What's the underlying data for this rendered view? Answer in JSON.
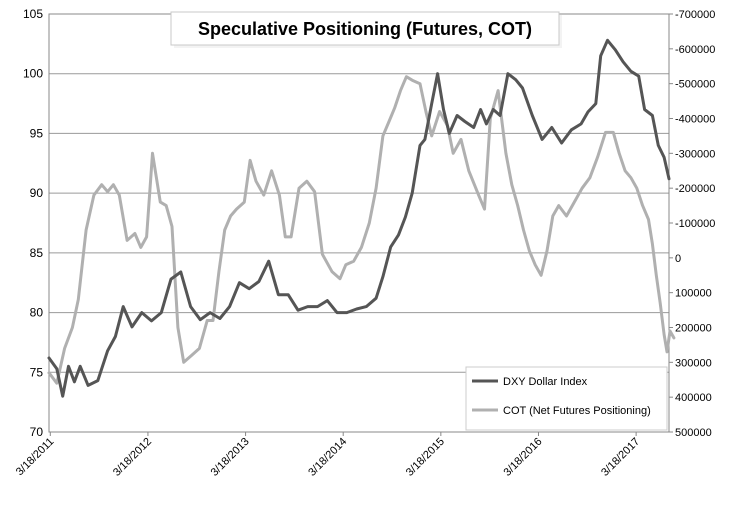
{
  "chart_data": {
    "type": "line",
    "title": "Speculative Positioning (Futures, COT)",
    "x_tick_labels": [
      "3/18/2011",
      "3/18/2012",
      "3/18/2013",
      "3/18/2014",
      "3/18/2015",
      "3/18/2016",
      "3/18/2017"
    ],
    "x_range": [
      2011.2,
      2017.55
    ],
    "y_left": {
      "min": 70,
      "max": 105,
      "ticks": [
        "70",
        "75",
        "80",
        "85",
        "90",
        "95",
        "100",
        "105"
      ]
    },
    "y_right": {
      "min": 500000,
      "max": -700000,
      "inverted": true,
      "ticks": [
        "500000",
        "400000",
        "300000",
        "200000",
        "100000",
        "0",
        "-100000",
        "-200000",
        "-300000",
        "-400000",
        "-500000",
        "-600000",
        "-700000"
      ]
    },
    "grid": "horizontal",
    "legend_position": "bottom-right",
    "series": [
      {
        "name": "DXY Dollar Index",
        "axis": "left",
        "color": "#555555",
        "points": [
          [
            2011.2,
            76.2
          ],
          [
            2011.28,
            75.3
          ],
          [
            2011.34,
            73.0
          ],
          [
            2011.4,
            75.5
          ],
          [
            2011.46,
            74.2
          ],
          [
            2011.52,
            75.5
          ],
          [
            2011.6,
            73.9
          ],
          [
            2011.7,
            74.3
          ],
          [
            2011.8,
            76.8
          ],
          [
            2011.88,
            78.0
          ],
          [
            2011.96,
            80.5
          ],
          [
            2012.05,
            78.8
          ],
          [
            2012.15,
            80.0
          ],
          [
            2012.25,
            79.3
          ],
          [
            2012.35,
            80.0
          ],
          [
            2012.45,
            82.8
          ],
          [
            2012.55,
            83.4
          ],
          [
            2012.65,
            80.5
          ],
          [
            2012.75,
            79.4
          ],
          [
            2012.85,
            80.0
          ],
          [
            2012.95,
            79.5
          ],
          [
            2013.05,
            80.5
          ],
          [
            2013.15,
            82.5
          ],
          [
            2013.25,
            82.0
          ],
          [
            2013.35,
            82.6
          ],
          [
            2013.45,
            84.3
          ],
          [
            2013.55,
            81.5
          ],
          [
            2013.65,
            81.5
          ],
          [
            2013.75,
            80.2
          ],
          [
            2013.85,
            80.5
          ],
          [
            2013.95,
            80.5
          ],
          [
            2014.05,
            81.0
          ],
          [
            2014.15,
            80.0
          ],
          [
            2014.25,
            80.0
          ],
          [
            2014.35,
            80.3
          ],
          [
            2014.45,
            80.5
          ],
          [
            2014.55,
            81.2
          ],
          [
            2014.62,
            83.0
          ],
          [
            2014.7,
            85.5
          ],
          [
            2014.78,
            86.5
          ],
          [
            2014.85,
            88.0
          ],
          [
            2014.92,
            90.0
          ],
          [
            2015.0,
            94.0
          ],
          [
            2015.05,
            94.5
          ],
          [
            2015.12,
            97.5
          ],
          [
            2015.18,
            100.0
          ],
          [
            2015.24,
            97.0
          ],
          [
            2015.3,
            95.0
          ],
          [
            2015.38,
            96.5
          ],
          [
            2015.46,
            96.0
          ],
          [
            2015.55,
            95.5
          ],
          [
            2015.62,
            97.0
          ],
          [
            2015.68,
            95.8
          ],
          [
            2015.75,
            97.0
          ],
          [
            2015.82,
            96.5
          ],
          [
            2015.9,
            100.0
          ],
          [
            2015.98,
            99.5
          ],
          [
            2016.05,
            98.8
          ],
          [
            2016.15,
            96.5
          ],
          [
            2016.25,
            94.5
          ],
          [
            2016.35,
            95.5
          ],
          [
            2016.45,
            94.2
          ],
          [
            2016.55,
            95.3
          ],
          [
            2016.65,
            95.8
          ],
          [
            2016.72,
            96.8
          ],
          [
            2016.8,
            97.5
          ],
          [
            2016.85,
            101.5
          ],
          [
            2016.92,
            102.8
          ],
          [
            2017.0,
            102.0
          ],
          [
            2017.08,
            101.0
          ],
          [
            2017.16,
            100.2
          ],
          [
            2017.24,
            99.8
          ],
          [
            2017.3,
            97.0
          ],
          [
            2017.38,
            96.5
          ],
          [
            2017.44,
            94.0
          ],
          [
            2017.5,
            93.0
          ],
          [
            2017.55,
            91.2
          ]
        ]
      },
      {
        "name": "COT (Net Futures Positioning)",
        "axis": "right",
        "color": "#b0b0b0",
        "points": [
          [
            2011.2,
            330000
          ],
          [
            2011.28,
            360000
          ],
          [
            2011.36,
            260000
          ],
          [
            2011.44,
            200000
          ],
          [
            2011.5,
            120000
          ],
          [
            2011.58,
            -80000
          ],
          [
            2011.66,
            -180000
          ],
          [
            2011.74,
            -210000
          ],
          [
            2011.8,
            -190000
          ],
          [
            2011.86,
            -210000
          ],
          [
            2011.92,
            -180000
          ],
          [
            2012.0,
            -50000
          ],
          [
            2012.08,
            -70000
          ],
          [
            2012.14,
            -30000
          ],
          [
            2012.2,
            -60000
          ],
          [
            2012.26,
            -300000
          ],
          [
            2012.34,
            -160000
          ],
          [
            2012.4,
            -150000
          ],
          [
            2012.46,
            -90000
          ],
          [
            2012.52,
            200000
          ],
          [
            2012.58,
            300000
          ],
          [
            2012.66,
            280000
          ],
          [
            2012.74,
            260000
          ],
          [
            2012.82,
            180000
          ],
          [
            2012.88,
            180000
          ],
          [
            2012.94,
            40000
          ],
          [
            2013.0,
            -80000
          ],
          [
            2013.06,
            -120000
          ],
          [
            2013.12,
            -140000
          ],
          [
            2013.2,
            -160000
          ],
          [
            2013.26,
            -280000
          ],
          [
            2013.32,
            -220000
          ],
          [
            2013.4,
            -180000
          ],
          [
            2013.48,
            -250000
          ],
          [
            2013.56,
            -180000
          ],
          [
            2013.62,
            -60000
          ],
          [
            2013.68,
            -60000
          ],
          [
            2013.76,
            -200000
          ],
          [
            2013.84,
            -220000
          ],
          [
            2013.92,
            -190000
          ],
          [
            2014.0,
            -10000
          ],
          [
            2014.1,
            40000
          ],
          [
            2014.18,
            60000
          ],
          [
            2014.24,
            20000
          ],
          [
            2014.32,
            10000
          ],
          [
            2014.4,
            -30000
          ],
          [
            2014.48,
            -100000
          ],
          [
            2014.55,
            -200000
          ],
          [
            2014.62,
            -350000
          ],
          [
            2014.68,
            -390000
          ],
          [
            2014.74,
            -430000
          ],
          [
            2014.8,
            -480000
          ],
          [
            2014.86,
            -520000
          ],
          [
            2014.92,
            -510000
          ],
          [
            2015.0,
            -500000
          ],
          [
            2015.06,
            -420000
          ],
          [
            2015.12,
            -350000
          ],
          [
            2015.2,
            -420000
          ],
          [
            2015.28,
            -380000
          ],
          [
            2015.34,
            -300000
          ],
          [
            2015.42,
            -340000
          ],
          [
            2015.5,
            -250000
          ],
          [
            2015.6,
            -180000
          ],
          [
            2015.66,
            -140000
          ],
          [
            2015.72,
            -400000
          ],
          [
            2015.8,
            -480000
          ],
          [
            2015.88,
            -300000
          ],
          [
            2015.94,
            -210000
          ],
          [
            2016.0,
            -150000
          ],
          [
            2016.06,
            -80000
          ],
          [
            2016.12,
            -20000
          ],
          [
            2016.18,
            20000
          ],
          [
            2016.24,
            50000
          ],
          [
            2016.3,
            -20000
          ],
          [
            2016.36,
            -120000
          ],
          [
            2016.42,
            -150000
          ],
          [
            2016.5,
            -120000
          ],
          [
            2016.58,
            -160000
          ],
          [
            2016.66,
            -200000
          ],
          [
            2016.74,
            -230000
          ],
          [
            2016.82,
            -290000
          ],
          [
            2016.9,
            -360000
          ],
          [
            2016.98,
            -360000
          ],
          [
            2017.04,
            -300000
          ],
          [
            2017.1,
            -250000
          ],
          [
            2017.16,
            -230000
          ],
          [
            2017.22,
            -200000
          ],
          [
            2017.28,
            -150000
          ],
          [
            2017.34,
            -110000
          ],
          [
            2017.38,
            -40000
          ],
          [
            2017.42,
            50000
          ],
          [
            2017.46,
            130000
          ],
          [
            2017.5,
            220000
          ],
          [
            2017.53,
            270000
          ],
          [
            2017.56,
            210000
          ],
          [
            2017.6,
            230000
          ]
        ]
      }
    ]
  }
}
